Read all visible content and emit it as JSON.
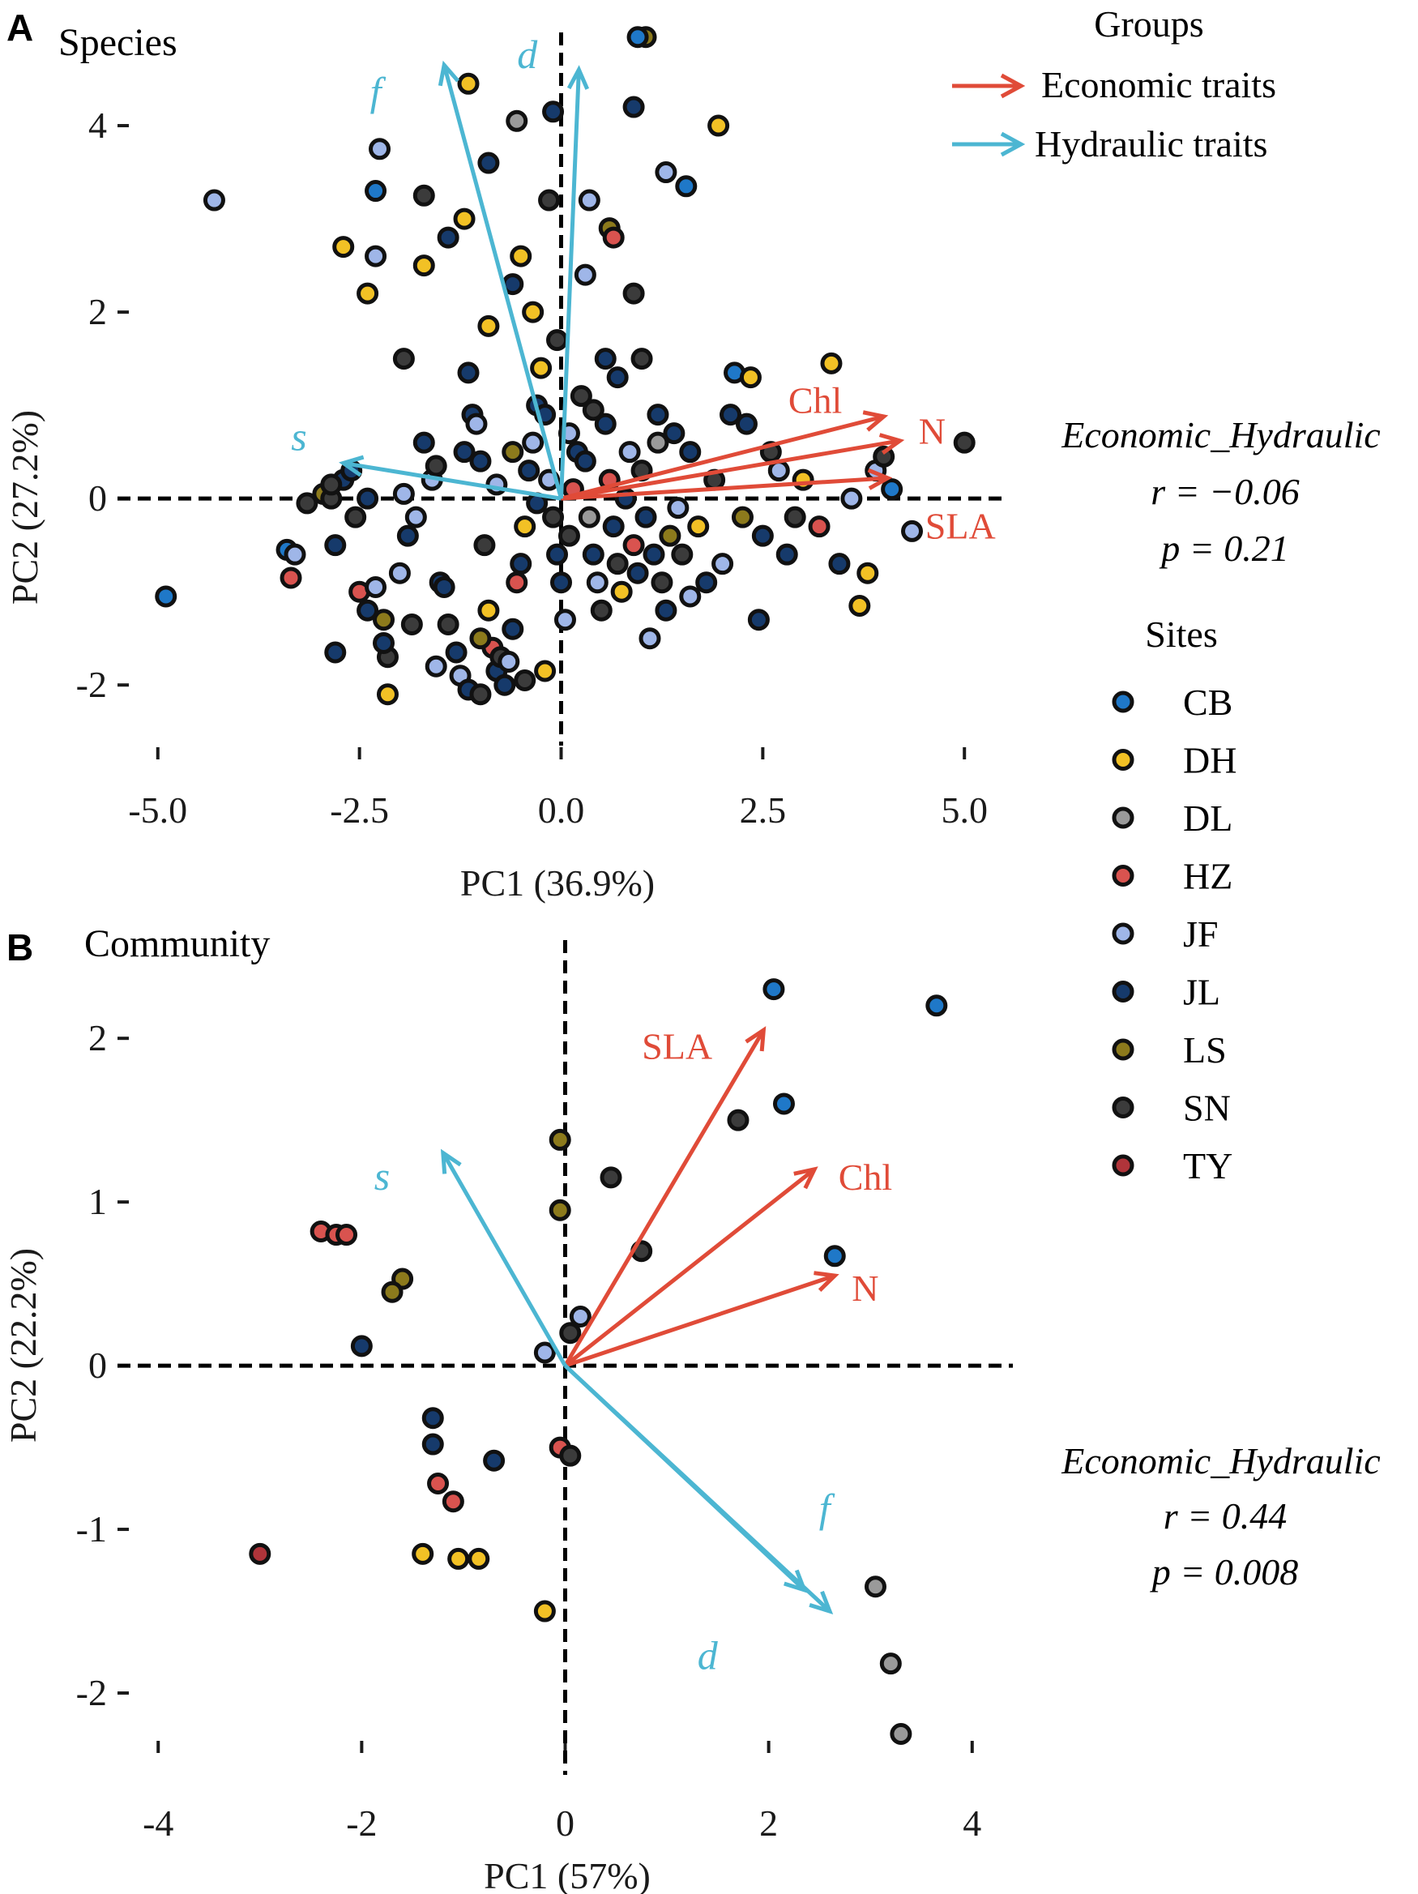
{
  "colors": {
    "economic": "#e04b38",
    "hydraulic": "#4cb6d2",
    "sites": {
      "CB": "#1f78c8",
      "DH": "#f2c125",
      "DL": "#9a9a9a",
      "HZ": "#d9534f",
      "JF": "#9fb6e8",
      "JL": "#163a6b",
      "LS": "#8c7a1c",
      "SN": "#3b3b3b",
      "TY": "#b0343a"
    }
  },
  "legend": {
    "groups_title": "Groups",
    "groups": [
      {
        "label": "Economic traits",
        "color_key": "economic"
      },
      {
        "label": "Hydraulic traits",
        "color_key": "hydraulic"
      }
    ],
    "sites_title": "Sites",
    "sites": [
      "CB",
      "DH",
      "DL",
      "HZ",
      "JF",
      "JL",
      "LS",
      "SN",
      "TY"
    ]
  },
  "chart_data": [
    {
      "panel": "A",
      "type": "scatter",
      "title": "Species",
      "xlabel": "PC1 (36.9%)",
      "ylabel": "PC2 (27.2%)",
      "xlim": [
        -5.5,
        5.5
      ],
      "ylim": [
        -2.65,
        5.0
      ],
      "xticks": [
        -5.0,
        -2.5,
        0.0,
        2.5,
        5.0
      ],
      "xtick_labels": [
        "-5.0",
        "-2.5",
        "0.0",
        "2.5",
        "5.0"
      ],
      "yticks": [
        -2,
        0,
        2,
        4
      ],
      "ytick_labels": [
        "-2",
        "0",
        "2",
        "4"
      ],
      "stats": {
        "label": "Economic_Hydraulic",
        "r": "r = −0.06",
        "p": "p = 0.21"
      },
      "arrows": [
        {
          "name": "Chl",
          "group": "economic",
          "x": 4.0,
          "y": 0.88,
          "lx": 3.15,
          "ly": 1.05
        },
        {
          "name": "N",
          "group": "economic",
          "x": 4.2,
          "y": 0.62,
          "lx": 4.6,
          "ly": 0.72
        },
        {
          "name": "SLA",
          "group": "economic",
          "x": 4.05,
          "y": 0.22,
          "lx": 4.95,
          "ly": -0.3
        },
        {
          "name": "s",
          "group": "hydraulic",
          "x": -2.7,
          "y": 0.38,
          "lx": -3.25,
          "ly": 0.65
        },
        {
          "name": "f",
          "group": "hydraulic",
          "x": -1.45,
          "y": 4.65,
          "lx": -2.3,
          "ly": 4.35
        },
        {
          "name": "d",
          "group": "hydraulic",
          "x": 0.22,
          "y": 4.6,
          "lx": -0.42,
          "ly": 4.75
        }
      ],
      "points": [
        [
          -4.3,
          3.2,
          "JF"
        ],
        [
          -4.9,
          -1.05,
          "CB"
        ],
        [
          -3.4,
          -0.55,
          "CB"
        ],
        [
          -3.3,
          -0.6,
          "JF"
        ],
        [
          -3.35,
          -0.85,
          "HZ"
        ],
        [
          -2.95,
          0.05,
          "LS"
        ],
        [
          -2.85,
          0.0,
          "SN"
        ],
        [
          -2.8,
          -0.5,
          "JL"
        ],
        [
          -2.7,
          0.2,
          "JL"
        ],
        [
          -2.6,
          0.3,
          "JL"
        ],
        [
          -2.55,
          -0.2,
          "SN"
        ],
        [
          -2.5,
          -1.0,
          "HZ"
        ],
        [
          -2.4,
          -1.2,
          "JL"
        ],
        [
          -2.3,
          -0.95,
          "JF"
        ],
        [
          -2.2,
          -1.3,
          "LS"
        ],
        [
          -2.15,
          -1.7,
          "SN"
        ],
        [
          -2.0,
          -0.8,
          "JF"
        ],
        [
          -1.9,
          -0.4,
          "JL"
        ],
        [
          -1.8,
          -0.2,
          "JF"
        ],
        [
          -1.7,
          0.6,
          "JL"
        ],
        [
          -1.6,
          0.2,
          "JF"
        ],
        [
          -1.5,
          -0.9,
          "JL"
        ],
        [
          -1.45,
          -0.95,
          "JL"
        ],
        [
          -1.4,
          -1.35,
          "SN"
        ],
        [
          -1.3,
          -1.65,
          "JL"
        ],
        [
          -1.25,
          -1.9,
          "JF"
        ],
        [
          -1.2,
          0.5,
          "JL"
        ],
        [
          -1.1,
          0.9,
          "JL"
        ],
        [
          -1.05,
          0.8,
          "JF"
        ],
        [
          -1.0,
          0.4,
          "JL"
        ],
        [
          -0.95,
          -0.5,
          "SN"
        ],
        [
          -0.9,
          -1.2,
          "DH"
        ],
        [
          -0.85,
          -1.6,
          "HZ"
        ],
        [
          -0.8,
          -1.85,
          "JL"
        ],
        [
          -0.75,
          -1.7,
          "SN"
        ],
        [
          -0.7,
          -2.0,
          "JL"
        ],
        [
          -0.65,
          -1.75,
          "JF"
        ],
        [
          -0.6,
          -1.4,
          "JL"
        ],
        [
          -0.55,
          -0.9,
          "HZ"
        ],
        [
          -0.5,
          -0.7,
          "JL"
        ],
        [
          -0.45,
          -0.3,
          "DH"
        ],
        [
          -0.4,
          0.3,
          "JL"
        ],
        [
          -0.35,
          0.6,
          "JF"
        ],
        [
          -0.3,
          1.0,
          "JL"
        ],
        [
          -0.25,
          1.4,
          "DH"
        ],
        [
          -0.2,
          0.9,
          "JL"
        ],
        [
          -0.15,
          0.2,
          "JF"
        ],
        [
          -0.1,
          -0.2,
          "SN"
        ],
        [
          -0.05,
          -0.6,
          "JL"
        ],
        [
          0.0,
          -0.9,
          "JL"
        ],
        [
          0.05,
          -1.3,
          "JF"
        ],
        [
          0.1,
          -0.4,
          "SN"
        ],
        [
          0.15,
          0.1,
          "HZ"
        ],
        [
          0.2,
          0.5,
          "JL"
        ],
        [
          0.25,
          1.1,
          "SN"
        ],
        [
          0.3,
          0.4,
          "JL"
        ],
        [
          0.35,
          -0.2,
          "DL"
        ],
        [
          0.4,
          -0.6,
          "JL"
        ],
        [
          0.45,
          -0.9,
          "JF"
        ],
        [
          0.5,
          -1.2,
          "SN"
        ],
        [
          0.55,
          0.8,
          "JL"
        ],
        [
          0.6,
          0.2,
          "HZ"
        ],
        [
          0.65,
          -0.3,
          "JL"
        ],
        [
          0.7,
          -0.7,
          "SN"
        ],
        [
          0.75,
          -1.0,
          "DH"
        ],
        [
          0.8,
          0.0,
          "JL"
        ],
        [
          0.85,
          0.5,
          "JF"
        ],
        [
          0.9,
          -0.5,
          "HZ"
        ],
        [
          0.95,
          -0.8,
          "JL"
        ],
        [
          1.0,
          0.3,
          "SN"
        ],
        [
          1.05,
          -0.2,
          "JL"
        ],
        [
          1.1,
          -1.5,
          "JF"
        ],
        [
          1.15,
          -0.6,
          "JL"
        ],
        [
          1.2,
          0.6,
          "DL"
        ],
        [
          1.25,
          -0.9,
          "SN"
        ],
        [
          1.3,
          -1.2,
          "JL"
        ],
        [
          1.35,
          -0.4,
          "LS"
        ],
        [
          1.4,
          0.7,
          "JL"
        ],
        [
          1.45,
          -0.1,
          "JF"
        ],
        [
          1.5,
          -0.6,
          "SN"
        ],
        [
          1.6,
          0.5,
          "JL"
        ],
        [
          1.7,
          -0.3,
          "DH"
        ],
        [
          1.8,
          -0.9,
          "JL"
        ],
        [
          1.9,
          0.2,
          "SN"
        ],
        [
          2.0,
          -0.7,
          "JF"
        ],
        [
          2.1,
          0.9,
          "JL"
        ],
        [
          2.15,
          1.35,
          "CB"
        ],
        [
          2.25,
          -0.2,
          "LS"
        ],
        [
          2.35,
          1.3,
          "DH"
        ],
        [
          2.45,
          -1.3,
          "JL"
        ],
        [
          2.5,
          -0.4,
          "JL"
        ],
        [
          2.6,
          0.5,
          "SN"
        ],
        [
          2.7,
          0.3,
          "JF"
        ],
        [
          2.8,
          -0.6,
          "JL"
        ],
        [
          2.9,
          -0.2,
          "SN"
        ],
        [
          3.0,
          0.2,
          "DH"
        ],
        [
          3.2,
          -0.3,
          "HZ"
        ],
        [
          3.35,
          1.45,
          "DH"
        ],
        [
          3.45,
          -0.7,
          "JL"
        ],
        [
          3.6,
          0.0,
          "JF"
        ],
        [
          3.7,
          -1.15,
          "DH"
        ],
        [
          3.8,
          -0.8,
          "DH"
        ],
        [
          3.9,
          0.3,
          "JF"
        ],
        [
          4.0,
          0.45,
          "SN"
        ],
        [
          4.1,
          0.1,
          "CB"
        ],
        [
          4.35,
          -0.35,
          "JF"
        ],
        [
          5.0,
          0.6,
          "SN"
        ],
        [
          -2.4,
          0.0,
          "JL"
        ],
        [
          -1.95,
          0.05,
          "JF"
        ],
        [
          -1.55,
          0.35,
          "SN"
        ],
        [
          -0.8,
          0.15,
          "JF"
        ],
        [
          -0.6,
          0.5,
          "LS"
        ],
        [
          -0.3,
          -0.05,
          "JL"
        ],
        [
          0.1,
          0.7,
          "JF"
        ],
        [
          0.4,
          0.95,
          "SN"
        ],
        [
          0.7,
          1.3,
          "JL"
        ],
        [
          1.0,
          1.5,
          "SN"
        ],
        [
          1.2,
          0.9,
          "JL"
        ],
        [
          1.6,
          -1.05,
          "JF"
        ],
        [
          2.3,
          0.8,
          "JL"
        ],
        [
          -1.15,
          1.35,
          "JL"
        ],
        [
          -0.9,
          1.85,
          "DH"
        ],
        [
          -0.6,
          2.3,
          "JL"
        ],
        [
          -0.35,
          2.0,
          "DH"
        ],
        [
          -0.05,
          1.7,
          "SN"
        ],
        [
          0.3,
          2.4,
          "JF"
        ],
        [
          0.55,
          1.5,
          "JL"
        ],
        [
          0.9,
          2.2,
          "SN"
        ],
        [
          -1.7,
          2.5,
          "DH"
        ],
        [
          -1.95,
          1.5,
          "SN"
        ],
        [
          -2.3,
          2.6,
          "JF"
        ],
        [
          -2.4,
          2.2,
          "DH"
        ],
        [
          -1.4,
          2.8,
          "JL"
        ],
        [
          -1.2,
          3.0,
          "DH"
        ],
        [
          -0.9,
          3.6,
          "JL"
        ],
        [
          -0.5,
          2.6,
          "DH"
        ],
        [
          -0.15,
          3.2,
          "SN"
        ],
        [
          0.35,
          3.2,
          "JF"
        ],
        [
          0.6,
          2.9,
          "LS"
        ],
        [
          0.65,
          2.8,
          "HZ"
        ],
        [
          1.3,
          3.5,
          "JF"
        ],
        [
          1.55,
          3.35,
          "CB"
        ],
        [
          1.95,
          4.0,
          "DH"
        ],
        [
          1.05,
          4.95,
          "LS"
        ],
        [
          0.95,
          4.95,
          "CB"
        ],
        [
          0.9,
          4.2,
          "JL"
        ],
        [
          -0.1,
          4.15,
          "JL"
        ],
        [
          -0.55,
          4.05,
          "DL"
        ],
        [
          -1.15,
          4.45,
          "DH"
        ],
        [
          -2.25,
          3.75,
          "JF"
        ],
        [
          -2.3,
          3.3,
          "CB"
        ],
        [
          -1.7,
          3.25,
          "SN"
        ],
        [
          -2.7,
          2.7,
          "DH"
        ],
        [
          -2.85,
          0.15,
          "SN"
        ],
        [
          -3.15,
          -0.05,
          "SN"
        ],
        [
          -1.0,
          -1.5,
          "LS"
        ],
        [
          -0.45,
          -1.95,
          "SN"
        ],
        [
          -0.2,
          -1.85,
          "DH"
        ],
        [
          -1.85,
          -1.35,
          "SN"
        ],
        [
          -1.55,
          -1.8,
          "JF"
        ],
        [
          -2.2,
          -1.55,
          "JL"
        ],
        [
          -2.8,
          -1.65,
          "JL"
        ],
        [
          -2.15,
          -2.1,
          "DH"
        ],
        [
          -1.15,
          -2.05,
          "JL"
        ],
        [
          -1.0,
          -2.1,
          "SN"
        ]
      ]
    },
    {
      "panel": "B",
      "type": "scatter",
      "title": "Community",
      "xlabel": "PC1 (57%)",
      "ylabel": "PC2 (22.2%)",
      "xlim": [
        -4.4,
        4.4
      ],
      "ylim": [
        -2.5,
        2.6
      ],
      "xticks": [
        -4,
        -2,
        0,
        2,
        4
      ],
      "xtick_labels": [
        "-4",
        "-2",
        "0",
        "2",
        "4"
      ],
      "yticks": [
        -2,
        -1,
        0,
        1,
        2
      ],
      "yticks_labels_note": "",
      "ytick_labels": [
        "-2",
        "-1",
        "0",
        "1",
        "2"
      ],
      "stats": {
        "label": "Economic_Hydraulic",
        "r": "r = 0.44",
        "p": "p = 0.008"
      },
      "arrows": [
        {
          "name": "SLA",
          "group": "economic",
          "x": 1.95,
          "y": 2.05,
          "lx": 1.1,
          "ly": 1.95
        },
        {
          "name": "Chl",
          "group": "economic",
          "x": 2.45,
          "y": 1.2,
          "lx": 2.95,
          "ly": 1.15
        },
        {
          "name": "N",
          "group": "economic",
          "x": 2.65,
          "y": 0.55,
          "lx": 2.95,
          "ly": 0.47
        },
        {
          "name": "s",
          "group": "hydraulic",
          "x": -1.2,
          "y": 1.3,
          "lx": -1.8,
          "ly": 1.15
        },
        {
          "name": "f",
          "group": "hydraulic",
          "x": 2.35,
          "y": -1.37,
          "lx": 2.55,
          "ly": -0.88
        },
        {
          "name": "d",
          "group": "hydraulic",
          "x": 2.6,
          "y": -1.5,
          "lx": 1.4,
          "ly": -1.78
        }
      ],
      "points": [
        [
          2.05,
          2.3,
          "CB"
        ],
        [
          3.65,
          2.2,
          "CB"
        ],
        [
          2.15,
          1.6,
          "CB"
        ],
        [
          1.7,
          1.5,
          "SN"
        ],
        [
          0.45,
          1.15,
          "SN"
        ],
        [
          0.75,
          0.7,
          "SN"
        ],
        [
          2.65,
          0.67,
          "CB"
        ],
        [
          -0.05,
          1.38,
          "LS"
        ],
        [
          -0.05,
          0.95,
          "LS"
        ],
        [
          -2.4,
          0.82,
          "HZ"
        ],
        [
          -2.25,
          0.8,
          "HZ"
        ],
        [
          -2.15,
          0.8,
          "HZ"
        ],
        [
          -1.6,
          0.53,
          "LS"
        ],
        [
          -1.7,
          0.45,
          "LS"
        ],
        [
          -2.0,
          0.12,
          "JL"
        ],
        [
          -0.2,
          0.08,
          "JF"
        ],
        [
          0.05,
          0.2,
          "SN"
        ],
        [
          0.15,
          0.3,
          "JF"
        ],
        [
          -1.3,
          -0.32,
          "JL"
        ],
        [
          -1.3,
          -0.48,
          "JL"
        ],
        [
          -0.7,
          -0.58,
          "JL"
        ],
        [
          -0.05,
          -0.5,
          "HZ"
        ],
        [
          0.05,
          -0.55,
          "SN"
        ],
        [
          -1.25,
          -0.72,
          "HZ"
        ],
        [
          -1.1,
          -0.83,
          "HZ"
        ],
        [
          -1.4,
          -1.15,
          "DH"
        ],
        [
          -1.05,
          -1.18,
          "DH"
        ],
        [
          -0.85,
          -1.18,
          "DH"
        ],
        [
          -3.0,
          -1.15,
          "TY"
        ],
        [
          -0.2,
          -1.5,
          "DH"
        ],
        [
          3.05,
          -1.35,
          "DL"
        ],
        [
          3.2,
          -1.82,
          "DL"
        ],
        [
          3.3,
          -2.25,
          "DL"
        ]
      ]
    }
  ]
}
